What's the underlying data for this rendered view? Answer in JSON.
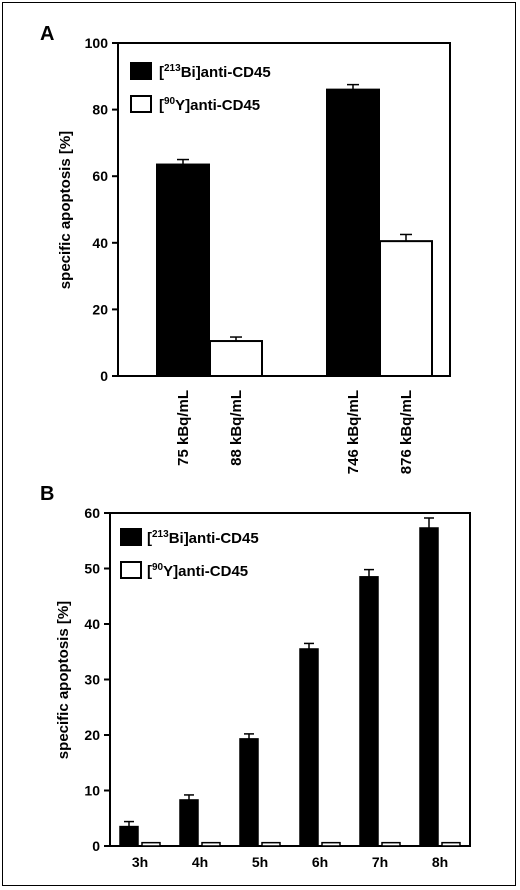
{
  "chart_data": [
    {
      "panel": "A",
      "type": "bar",
      "ylabel": "specific apoptosis [%]",
      "ylim": [
        0,
        100
      ],
      "yticks": [
        "0",
        "20",
        "40",
        "60",
        "80",
        "100"
      ],
      "legend": [
        {
          "iso": "213",
          "element": "Bi",
          "rest": "anti-CD45",
          "fill": "#000000"
        },
        {
          "iso": "90",
          "element": "Y",
          "rest": "anti-CD45",
          "fill": "#ffffff"
        }
      ],
      "bars": [
        {
          "label": "75 kBq/mL",
          "series": "[213Bi]anti-CD45",
          "value": 63.5,
          "error": 1.5,
          "fill": "#000000"
        },
        {
          "label": "88 kBq/mL",
          "series": "[90Y]anti-CD45",
          "value": 10.5,
          "error": 1.2,
          "fill": "#ffffff"
        },
        {
          "label": "746 kBq/mL",
          "series": "[213Bi]anti-CD45",
          "value": 86.0,
          "error": 1.5,
          "fill": "#000000"
        },
        {
          "label": "876 kBq/mL",
          "series": "[90Y]anti-CD45",
          "value": 40.5,
          "error": 2.0,
          "fill": "#ffffff"
        }
      ]
    },
    {
      "panel": "B",
      "type": "bar",
      "ylabel": "specific apoptosis [%]",
      "ylim": [
        0,
        60
      ],
      "yticks": [
        "0",
        "10",
        "20",
        "30",
        "40",
        "50",
        "60"
      ],
      "categories": [
        "3h",
        "4h",
        "5h",
        "6h",
        "7h",
        "8h"
      ],
      "legend": [
        {
          "iso": "213",
          "element": "Bi",
          "rest": "anti-CD45",
          "fill": "#000000"
        },
        {
          "iso": "90",
          "element": "Y",
          "rest": "anti-CD45",
          "fill": "#ffffff"
        }
      ],
      "series": [
        {
          "name": "[213Bi]anti-CD45",
          "fill": "#000000",
          "values": [
            3.5,
            8.3,
            19.3,
            35.5,
            48.5,
            57.3
          ],
          "errors": [
            0.9,
            0.9,
            0.9,
            1.0,
            1.3,
            1.8
          ]
        },
        {
          "name": "[90Y]anti-CD45",
          "fill": "#ffffff",
          "values": [
            0.6,
            0.6,
            0.6,
            0.6,
            0.6,
            0.6
          ],
          "errors": [
            0,
            0,
            0,
            0,
            0,
            0
          ]
        }
      ]
    }
  ]
}
